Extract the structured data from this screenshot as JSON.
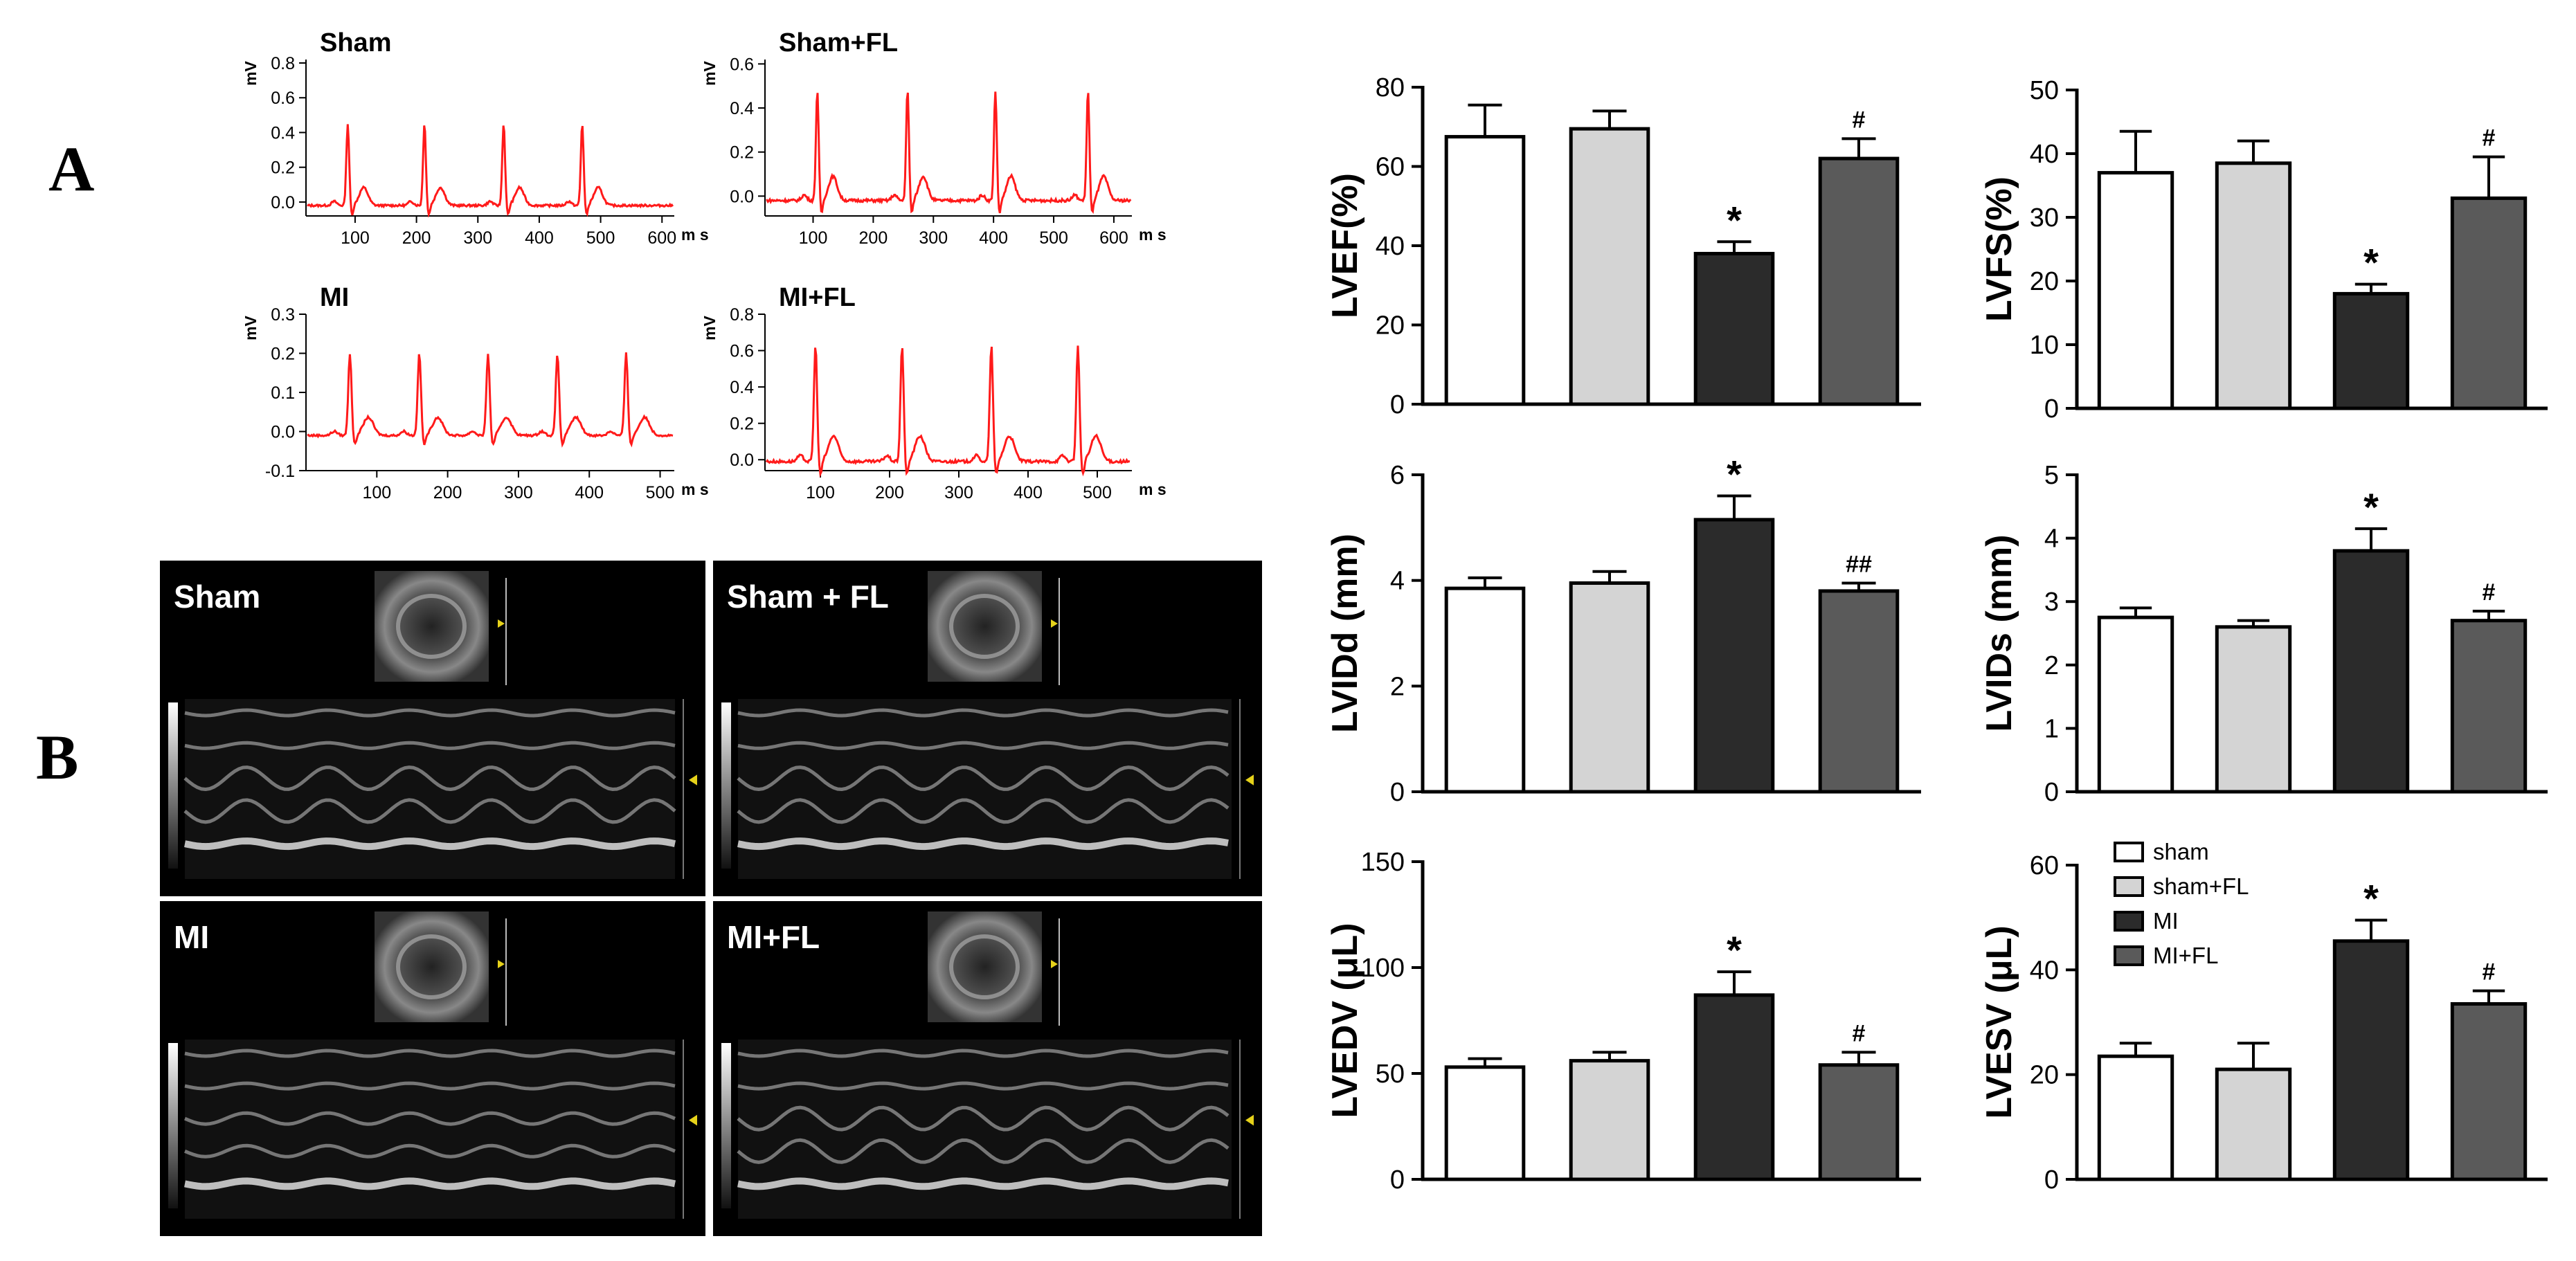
{
  "panel_labels": {
    "a": "A",
    "b": "B"
  },
  "colors": {
    "ecg_trace": "#ff1a1a",
    "groups": [
      "#ffffff",
      "#d4d4d4",
      "#2b2b2b",
      "#5a5a5a"
    ],
    "echo_bg": "#000000"
  },
  "legend": [
    "sham",
    "sham+FL",
    "MI",
    "MI+FL"
  ],
  "ecg_panels": [
    {
      "title": "Sham",
      "y_unit": "mV",
      "x_unit": "m s",
      "yticks": [
        "0.8",
        "0.6",
        "0.4",
        "0.2",
        "0.0"
      ],
      "ytick_values": [
        0.8,
        0.6,
        0.4,
        0.2,
        0.0
      ],
      "ylim": [
        -0.08,
        0.82
      ],
      "xticks": [
        "100",
        "200",
        "300",
        "400",
        "500",
        "600"
      ],
      "xtick_values": [
        100,
        200,
        300,
        400,
        500,
        600
      ],
      "xlim": [
        20,
        620
      ],
      "beats_ms": [
        88,
        213,
        342,
        470
      ],
      "peak": 0.45,
      "baseline": -0.02
    },
    {
      "title": "Sham+FL",
      "y_unit": "mV",
      "x_unit": "m s",
      "yticks": [
        "0.6",
        "0.4",
        "0.2",
        "0.0"
      ],
      "ytick_values": [
        0.6,
        0.4,
        0.2,
        0.0
      ],
      "ylim": [
        -0.09,
        0.62
      ],
      "xticks": [
        "100",
        "200",
        "300",
        "400",
        "500",
        "600"
      ],
      "xtick_values": [
        100,
        200,
        300,
        400,
        500,
        600
      ],
      "xlim": [
        20,
        630
      ],
      "beats_ms": [
        107,
        257,
        403,
        557
      ],
      "peak": 0.48,
      "baseline": -0.02
    },
    {
      "title": "MI",
      "y_unit": "mV",
      "x_unit": "m s",
      "yticks": [
        "0.3",
        "0.2",
        "0.1",
        "0.0",
        "-0.1"
      ],
      "ytick_values": [
        0.3,
        0.2,
        0.1,
        0.0,
        -0.1
      ],
      "ylim": [
        -0.1,
        0.3
      ],
      "xticks": [
        "100",
        "200",
        "300",
        "400",
        "500"
      ],
      "xtick_values": [
        100,
        200,
        300,
        400,
        500
      ],
      "xlim": [
        0,
        520
      ],
      "beats_ms": [
        62,
        160,
        257,
        355,
        452
      ],
      "peak": 0.2,
      "baseline": -0.01
    },
    {
      "title": "MI+FL",
      "y_unit": "mV",
      "x_unit": "m s",
      "yticks": [
        "0.8",
        "0.6",
        "0.4",
        "0.2",
        "0.0"
      ],
      "ytick_values": [
        0.8,
        0.6,
        0.4,
        0.2,
        0.0
      ],
      "ylim": [
        -0.06,
        0.8
      ],
      "xticks": [
        "100",
        "200",
        "300",
        "400",
        "500"
      ],
      "xtick_values": [
        100,
        200,
        300,
        400,
        500
      ],
      "xlim": [
        20,
        550
      ],
      "beats_ms": [
        93,
        218,
        347,
        472
      ],
      "peak": 0.63,
      "baseline": -0.01
    }
  ],
  "echo_panels": [
    {
      "label": "Sham"
    },
    {
      "label": "Sham + FL"
    },
    {
      "label": "MI"
    },
    {
      "label": "MI+FL"
    }
  ],
  "chart_data": [
    {
      "type": "bar",
      "ylabel": "LVEF(%)",
      "categories": [
        "sham",
        "sham+FL",
        "MI",
        "MI+FL"
      ],
      "values": [
        67.5,
        69.5,
        38,
        62
      ],
      "errors": [
        8,
        4.5,
        3,
        5
      ],
      "annotations": [
        "",
        "",
        "*",
        "#"
      ],
      "ylim": [
        0,
        80
      ],
      "yticks": [
        0,
        20,
        40,
        60,
        80
      ]
    },
    {
      "type": "bar",
      "ylabel": "LVFS(%)",
      "categories": [
        "sham",
        "sham+FL",
        "MI",
        "MI+FL"
      ],
      "values": [
        37,
        38.5,
        18,
        33
      ],
      "errors": [
        6.5,
        3.5,
        1.5,
        6.5
      ],
      "annotations": [
        "",
        "",
        "*",
        "#"
      ],
      "ylim": [
        0,
        50
      ],
      "yticks": [
        0,
        10,
        20,
        30,
        40,
        50
      ]
    },
    {
      "type": "bar",
      "ylabel": "LVIDd (mm)",
      "categories": [
        "sham",
        "sham+FL",
        "MI",
        "MI+FL"
      ],
      "values": [
        3.85,
        3.95,
        5.15,
        3.8
      ],
      "errors": [
        0.2,
        0.22,
        0.45,
        0.15
      ],
      "annotations": [
        "",
        "",
        "*",
        "##"
      ],
      "ylim": [
        0,
        6
      ],
      "yticks": [
        0,
        2,
        4,
        6
      ]
    },
    {
      "type": "bar",
      "ylabel": "LVIDs (mm)",
      "categories": [
        "sham",
        "sham+FL",
        "MI",
        "MI+FL"
      ],
      "values": [
        2.75,
        2.6,
        3.8,
        2.7
      ],
      "errors": [
        0.15,
        0.1,
        0.35,
        0.15
      ],
      "annotations": [
        "",
        "",
        "*",
        "#"
      ],
      "ylim": [
        0,
        5
      ],
      "yticks": [
        0,
        1,
        2,
        3,
        4,
        5
      ]
    },
    {
      "type": "bar",
      "ylabel": "LVEDV (μL)",
      "categories": [
        "sham",
        "sham+FL",
        "MI",
        "MI+FL"
      ],
      "values": [
        53,
        56,
        87,
        54
      ],
      "errors": [
        4,
        4,
        11,
        6
      ],
      "annotations": [
        "",
        "",
        "*",
        "#"
      ],
      "ylim": [
        0,
        150
      ],
      "yticks": [
        0,
        50,
        100,
        150
      ]
    },
    {
      "type": "bar",
      "ylabel": "LVESV (μL)",
      "categories": [
        "sham",
        "sham+FL",
        "MI",
        "MI+FL"
      ],
      "values": [
        23.5,
        21,
        45.5,
        33.5
      ],
      "errors": [
        2.5,
        5,
        4,
        2.5
      ],
      "annotations": [
        "",
        "",
        "*",
        "#"
      ],
      "ylim": [
        0,
        60
      ],
      "yticks": [
        0,
        20,
        40,
        60
      ]
    }
  ]
}
